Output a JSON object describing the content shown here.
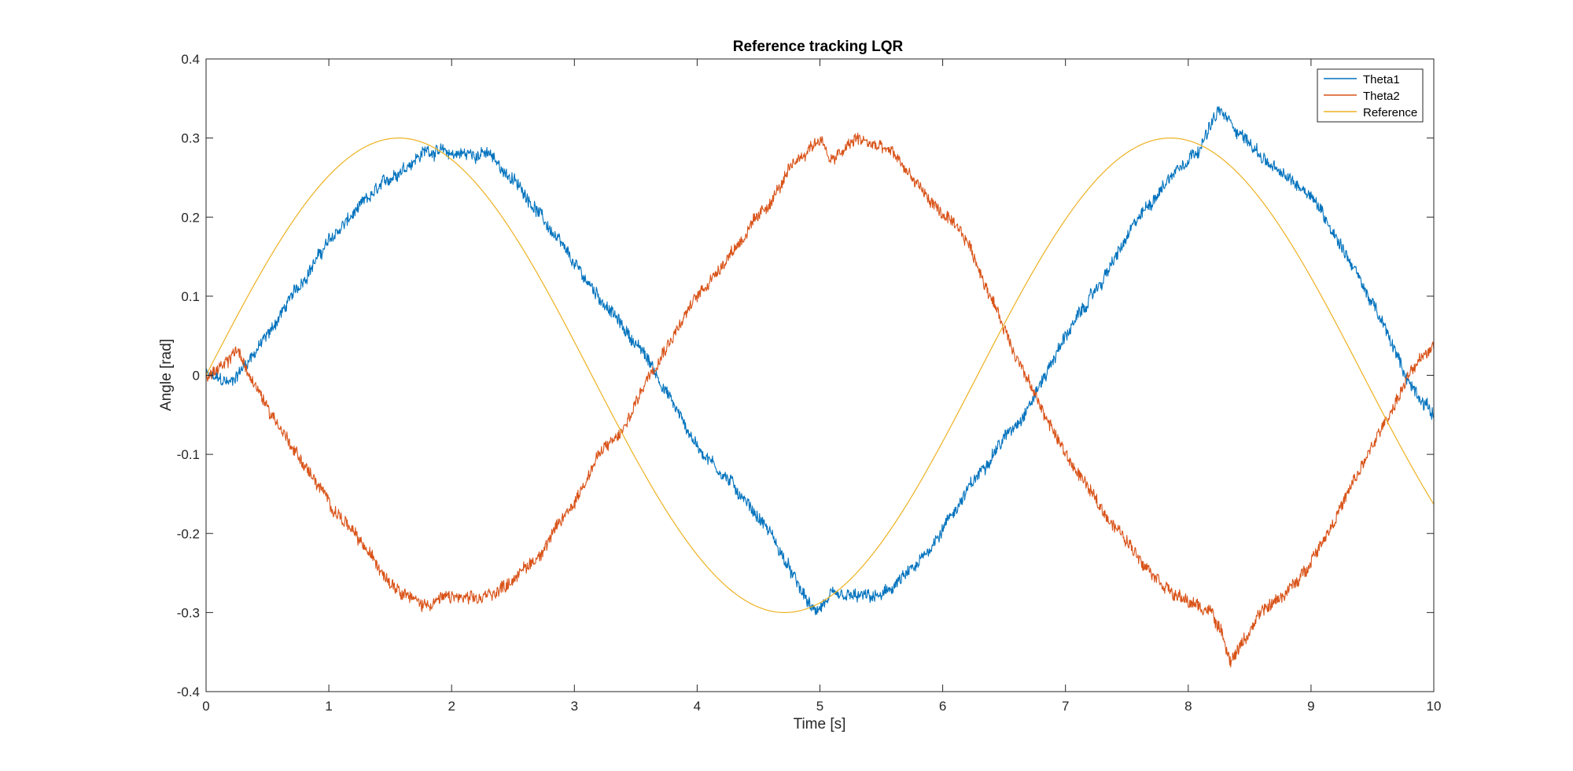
{
  "chart_data": {
    "type": "line",
    "title": "Reference tracking LQR",
    "xlabel": "Time [s]",
    "ylabel": "Angle [rad]",
    "xlim": [
      0,
      10
    ],
    "ylim": [
      -0.4,
      0.4
    ],
    "xticks": [
      0,
      1,
      2,
      3,
      4,
      5,
      6,
      7,
      8,
      9,
      10
    ],
    "xtick_labels": [
      "0",
      "1",
      "2",
      "3",
      "4",
      "5",
      "6",
      "7",
      "8",
      "9",
      "10"
    ],
    "yticks": [
      -0.4,
      -0.3,
      -0.2,
      -0.1,
      0,
      0.1,
      0.2,
      0.3,
      0.4
    ],
    "ytick_labels": [
      "-0.4",
      "-0.3",
      "-0.2",
      "-0.1",
      "0",
      "0.1",
      "0.2",
      "0.3",
      "0.4"
    ],
    "grid": false,
    "box": true,
    "legend_position": "top-right",
    "series": [
      {
        "name": "Theta1",
        "color": "#0072BD",
        "noisy": true,
        "x": [
          0,
          0.2,
          0.3,
          0.5,
          0.7,
          1.0,
          1.3,
          1.5,
          1.8,
          2.0,
          2.3,
          2.6,
          3.0,
          3.3,
          3.6,
          4.0,
          4.3,
          4.6,
          4.8,
          4.95,
          5.1,
          5.5,
          5.8,
          6.1,
          6.4,
          6.7,
          7.0,
          7.3,
          7.6,
          7.9,
          8.1,
          8.25,
          8.4,
          8.7,
          9.0,
          9.3,
          9.6,
          9.8,
          10.0
        ],
        "y": [
          0.0,
          -0.01,
          0.01,
          0.05,
          0.1,
          0.17,
          0.22,
          0.25,
          0.285,
          0.28,
          0.28,
          0.23,
          0.14,
          0.08,
          0.02,
          -0.09,
          -0.14,
          -0.2,
          -0.26,
          -0.3,
          -0.28,
          -0.28,
          -0.24,
          -0.17,
          -0.1,
          -0.04,
          0.05,
          0.12,
          0.2,
          0.26,
          0.29,
          0.335,
          0.31,
          0.26,
          0.23,
          0.15,
          0.06,
          -0.01,
          -0.05
        ]
      },
      {
        "name": "Theta2",
        "color": "#D95319",
        "noisy": true,
        "x": [
          0,
          0.15,
          0.25,
          0.35,
          0.5,
          0.7,
          1.0,
          1.3,
          1.5,
          1.75,
          2.0,
          2.2,
          2.4,
          2.7,
          3.0,
          3.2,
          3.4,
          3.6,
          3.8,
          4.0,
          4.3,
          4.6,
          4.8,
          5.0,
          5.1,
          5.3,
          5.6,
          5.9,
          6.2,
          6.5,
          6.7,
          7.0,
          7.3,
          7.6,
          7.9,
          8.2,
          8.35,
          8.6,
          8.9,
          9.2,
          9.5,
          9.8,
          10.0
        ],
        "y": [
          0.0,
          0.01,
          0.035,
          0.0,
          -0.04,
          -0.09,
          -0.16,
          -0.22,
          -0.26,
          -0.29,
          -0.28,
          -0.285,
          -0.27,
          -0.23,
          -0.16,
          -0.1,
          -0.07,
          0.0,
          0.05,
          0.1,
          0.16,
          0.22,
          0.27,
          0.3,
          0.27,
          0.3,
          0.28,
          0.22,
          0.17,
          0.06,
          -0.01,
          -0.1,
          -0.17,
          -0.23,
          -0.28,
          -0.3,
          -0.36,
          -0.3,
          -0.26,
          -0.18,
          -0.09,
          0.0,
          0.04
        ]
      },
      {
        "name": "Reference",
        "color": "#EDB120",
        "noisy": false,
        "function": "0.3*sin(t)",
        "x_range": [
          0,
          10
        ]
      }
    ]
  }
}
